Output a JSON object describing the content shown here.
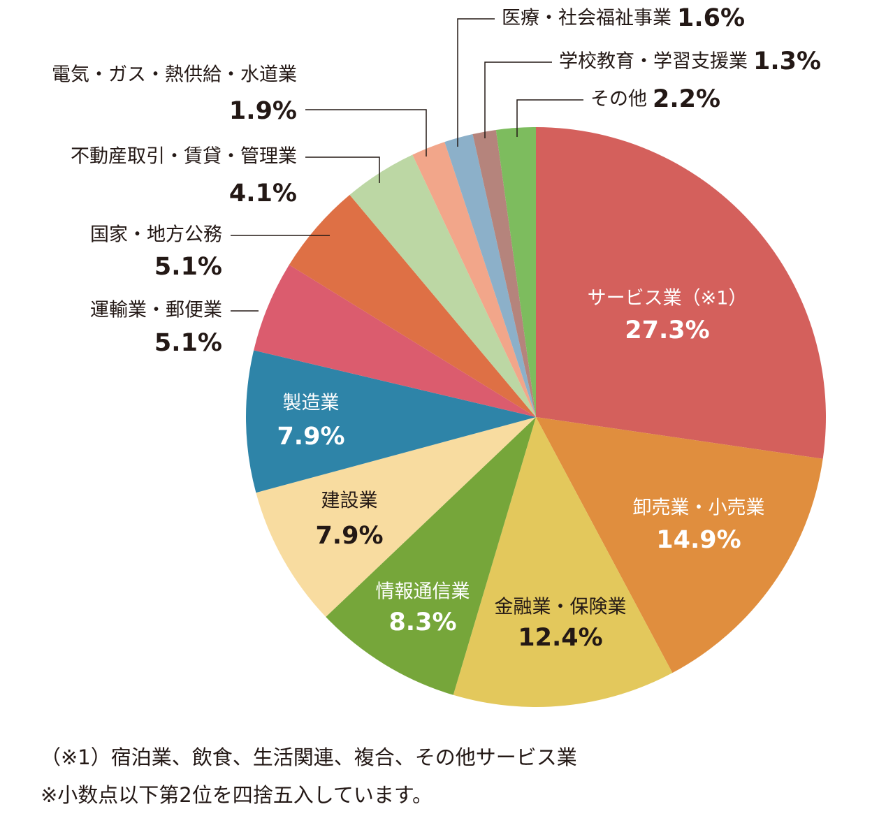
{
  "chart_data": {
    "type": "pie",
    "categories": [
      "サービス業（※1）",
      "卸売業・小売業",
      "金融業・保険業",
      "情報通信業",
      "建設業",
      "製造業",
      "運輸業・郵便業",
      "国家・地方公務",
      "不動産取引・賃貸・管理業",
      "電気・ガス・熱供給・水道業",
      "医療・社会福祉事業",
      "学校教育・学習支援業",
      "その他"
    ],
    "values": [
      27.3,
      14.9,
      12.4,
      8.3,
      7.9,
      7.9,
      5.1,
      5.1,
      4.1,
      1.9,
      1.6,
      1.3,
      2.2
    ],
    "value_labels": [
      "27.3%",
      "14.9%",
      "12.4%",
      "8.3%",
      "7.9%",
      "7.9%",
      "5.1%",
      "5.1%",
      "4.1%",
      "1.9%",
      "1.6%",
      "1.3%",
      "2.2%"
    ],
    "colors": [
      "#d4605c",
      "#e08e3e",
      "#e3c85c",
      "#76a63a",
      "#f8dca0",
      "#2e84a8",
      "#db5c6e",
      "#de7045",
      "#bcd7a4",
      "#f2a68a",
      "#8cb0c9",
      "#b5847c",
      "#7dbc5e"
    ],
    "notes": [
      "（※1）宿泊業、飲食、生活関連、複合、その他サービス業",
      "※小数点以下第2位を四捨五入しています。"
    ]
  }
}
